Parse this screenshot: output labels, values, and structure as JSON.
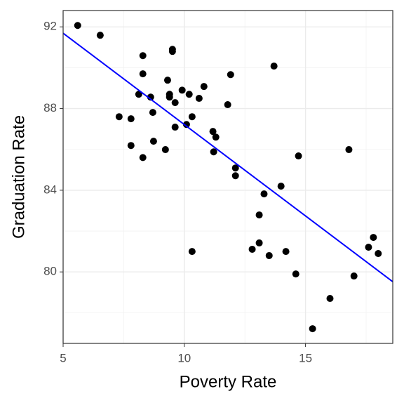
{
  "chart_data": {
    "type": "scatter",
    "x_label": "Poverty Rate",
    "y_label": "Graduation Rate",
    "series": [
      {
        "color": "#000000",
        "x": [
          5.6,
          6.53,
          7.31,
          7.8,
          7.8,
          8.12,
          8.29,
          8.29,
          8.29,
          8.61,
          8.7,
          8.73,
          9.22,
          9.31,
          9.39,
          9.39,
          9.51,
          9.51,
          9.62,
          9.62,
          9.91,
          10.09,
          10.2,
          10.32,
          10.32,
          10.61,
          10.81,
          11.18,
          11.3,
          11.21,
          11.79,
          11.91,
          12.11,
          12.11,
          12.8,
          13.09,
          13.09,
          13.29,
          13.5,
          13.7,
          13.99,
          14.19,
          14.6,
          14.71,
          15.29,
          16.01,
          16.79,
          17.0,
          17.6,
          17.8,
          18.0
        ],
        "values": [
          92.07,
          91.59,
          87.6,
          87.5,
          86.19,
          88.7,
          90.59,
          89.7,
          85.6,
          88.56,
          87.81,
          86.4,
          85.99,
          89.39,
          88.7,
          88.56,
          90.9,
          90.8,
          88.29,
          87.09,
          88.9,
          87.22,
          88.7,
          87.6,
          81.0,
          88.5,
          89.08,
          86.88,
          86.6,
          85.88,
          88.19,
          89.66,
          85.09,
          84.71,
          81.11,
          82.79,
          81.42,
          83.82,
          80.8,
          90.08,
          84.2,
          81.0,
          79.9,
          85.68,
          77.22,
          78.7,
          85.99,
          79.8,
          81.21,
          81.69,
          80.9
        ]
      }
    ],
    "fit": {
      "color": "#0000ff",
      "x": [
        5,
        18.6
      ],
      "values": [
        91.69,
        79.52
      ]
    },
    "xlim": [
      5,
      18.6
    ],
    "ylim": [
      76.5,
      92.8
    ],
    "xticks": [
      5,
      10,
      15
    ],
    "yticks": [
      80,
      84,
      88,
      92
    ],
    "xminor": [
      7.5,
      12.5,
      17.5
    ],
    "yminor": [
      78,
      82,
      86,
      90
    ],
    "grid": true
  }
}
